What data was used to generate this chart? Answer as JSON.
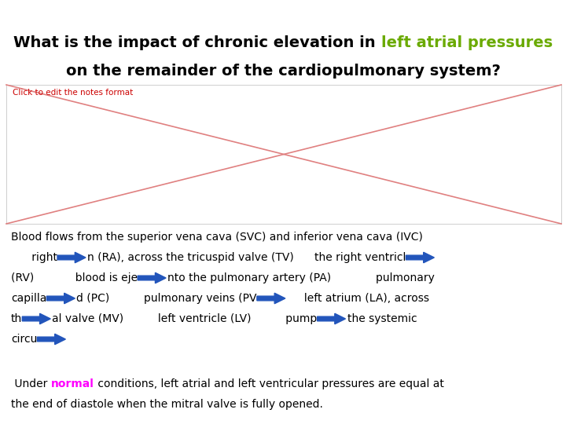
{
  "title_black1": "What is the impact of chronic elevation in ",
  "title_green": "left atrial pressures",
  "title_line2": "on the remainder of the cardiopulmonary system?",
  "green_color": "#6aaa00",
  "note_text": "Click to edit the notes format",
  "note_color": "#cc0000",
  "note_fontsize": 7.5,
  "title_fontsize": 14,
  "bg_color": "#ffffff",
  "cross_color": "#e08080",
  "body_text_fontsize": 10,
  "arrow_color": "#2255bb",
  "normal_color": "#ff00ff",
  "body_line1": "Blood flows from the superior vena cava (SVC) and inferior vena cava (IVC)",
  "body_line2_pre": "      right",
  "body_line2_mid": "n (RA), across the tricuspid valve (TV)      the right ventricl",
  "body_line3_pre": "(RV)            blood is eje",
  "body_line3_post": "nto the pulmonary artery (PA)             pulmonary",
  "body_line4_pre": "capilla",
  "body_line4_mid": "d (PC)          pulmonary veins (PV",
  "body_line4_post": "     left atrium (LA), across",
  "body_line5_pre": "th",
  "body_line5_mid": "al valve (MV)          left ventricle (LV)          pump",
  "body_line5_post": "the systemic",
  "body_line6_pre": "circu",
  "para2_pre": " Under ",
  "para2_colored": "normal",
  "para2_post": " conditions, left atrial and left ventricular pressures are equal at",
  "para2_line2": "the end of diastole when the mitral valve is fully opened."
}
